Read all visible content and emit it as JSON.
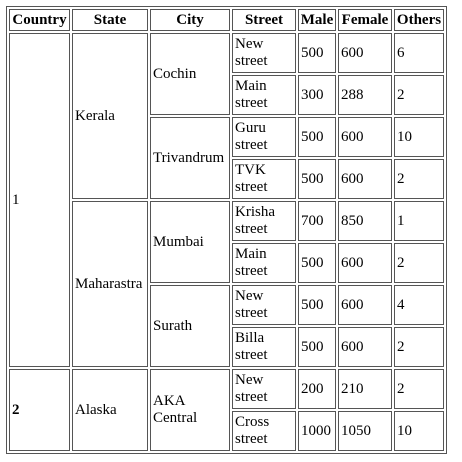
{
  "headers": [
    "Country",
    "State",
    "City",
    "Street",
    "Male",
    "Female",
    "Others"
  ],
  "countries": [
    {
      "name": "1",
      "states": [
        {
          "name": "Kerala",
          "cities": [
            {
              "name": "Cochin",
              "streets": [
                {
                  "street": "New street",
                  "male": "500",
                  "female": "600",
                  "others": "6"
                },
                {
                  "street": "Main street",
                  "male": "300",
                  "female": "288",
                  "others": "2"
                }
              ]
            },
            {
              "name": "Trivandrum",
              "streets": [
                {
                  "street": "Guru street",
                  "male": "500",
                  "female": "600",
                  "others": "10"
                },
                {
                  "street": "TVK street",
                  "male": "500",
                  "female": "600",
                  "others": "2"
                }
              ]
            }
          ]
        },
        {
          "name": "Maharastra",
          "cities": [
            {
              "name": "Mumbai",
              "streets": [
                {
                  "street": "Krisha street",
                  "male": "700",
                  "female": "850",
                  "others": "1"
                },
                {
                  "street": "Main street",
                  "male": "500",
                  "female": "600",
                  "others": "2"
                }
              ]
            },
            {
              "name": "Surath",
              "streets": [
                {
                  "street": "New street",
                  "male": "500",
                  "female": "600",
                  "others": "4"
                },
                {
                  "street": "Billa street",
                  "male": "500",
                  "female": "600",
                  "others": "2"
                }
              ]
            }
          ]
        }
      ]
    },
    {
      "name": "2",
      "states": [
        {
          "name": "Alaska",
          "cities": [
            {
              "name": "AKA Central",
              "streets": [
                {
                  "street": "New street",
                  "male": "200",
                  "female": "210",
                  "others": "2"
                },
                {
                  "street": "Cross street",
                  "male": "1000",
                  "female": "1050",
                  "others": "10"
                }
              ]
            }
          ]
        }
      ]
    }
  ]
}
